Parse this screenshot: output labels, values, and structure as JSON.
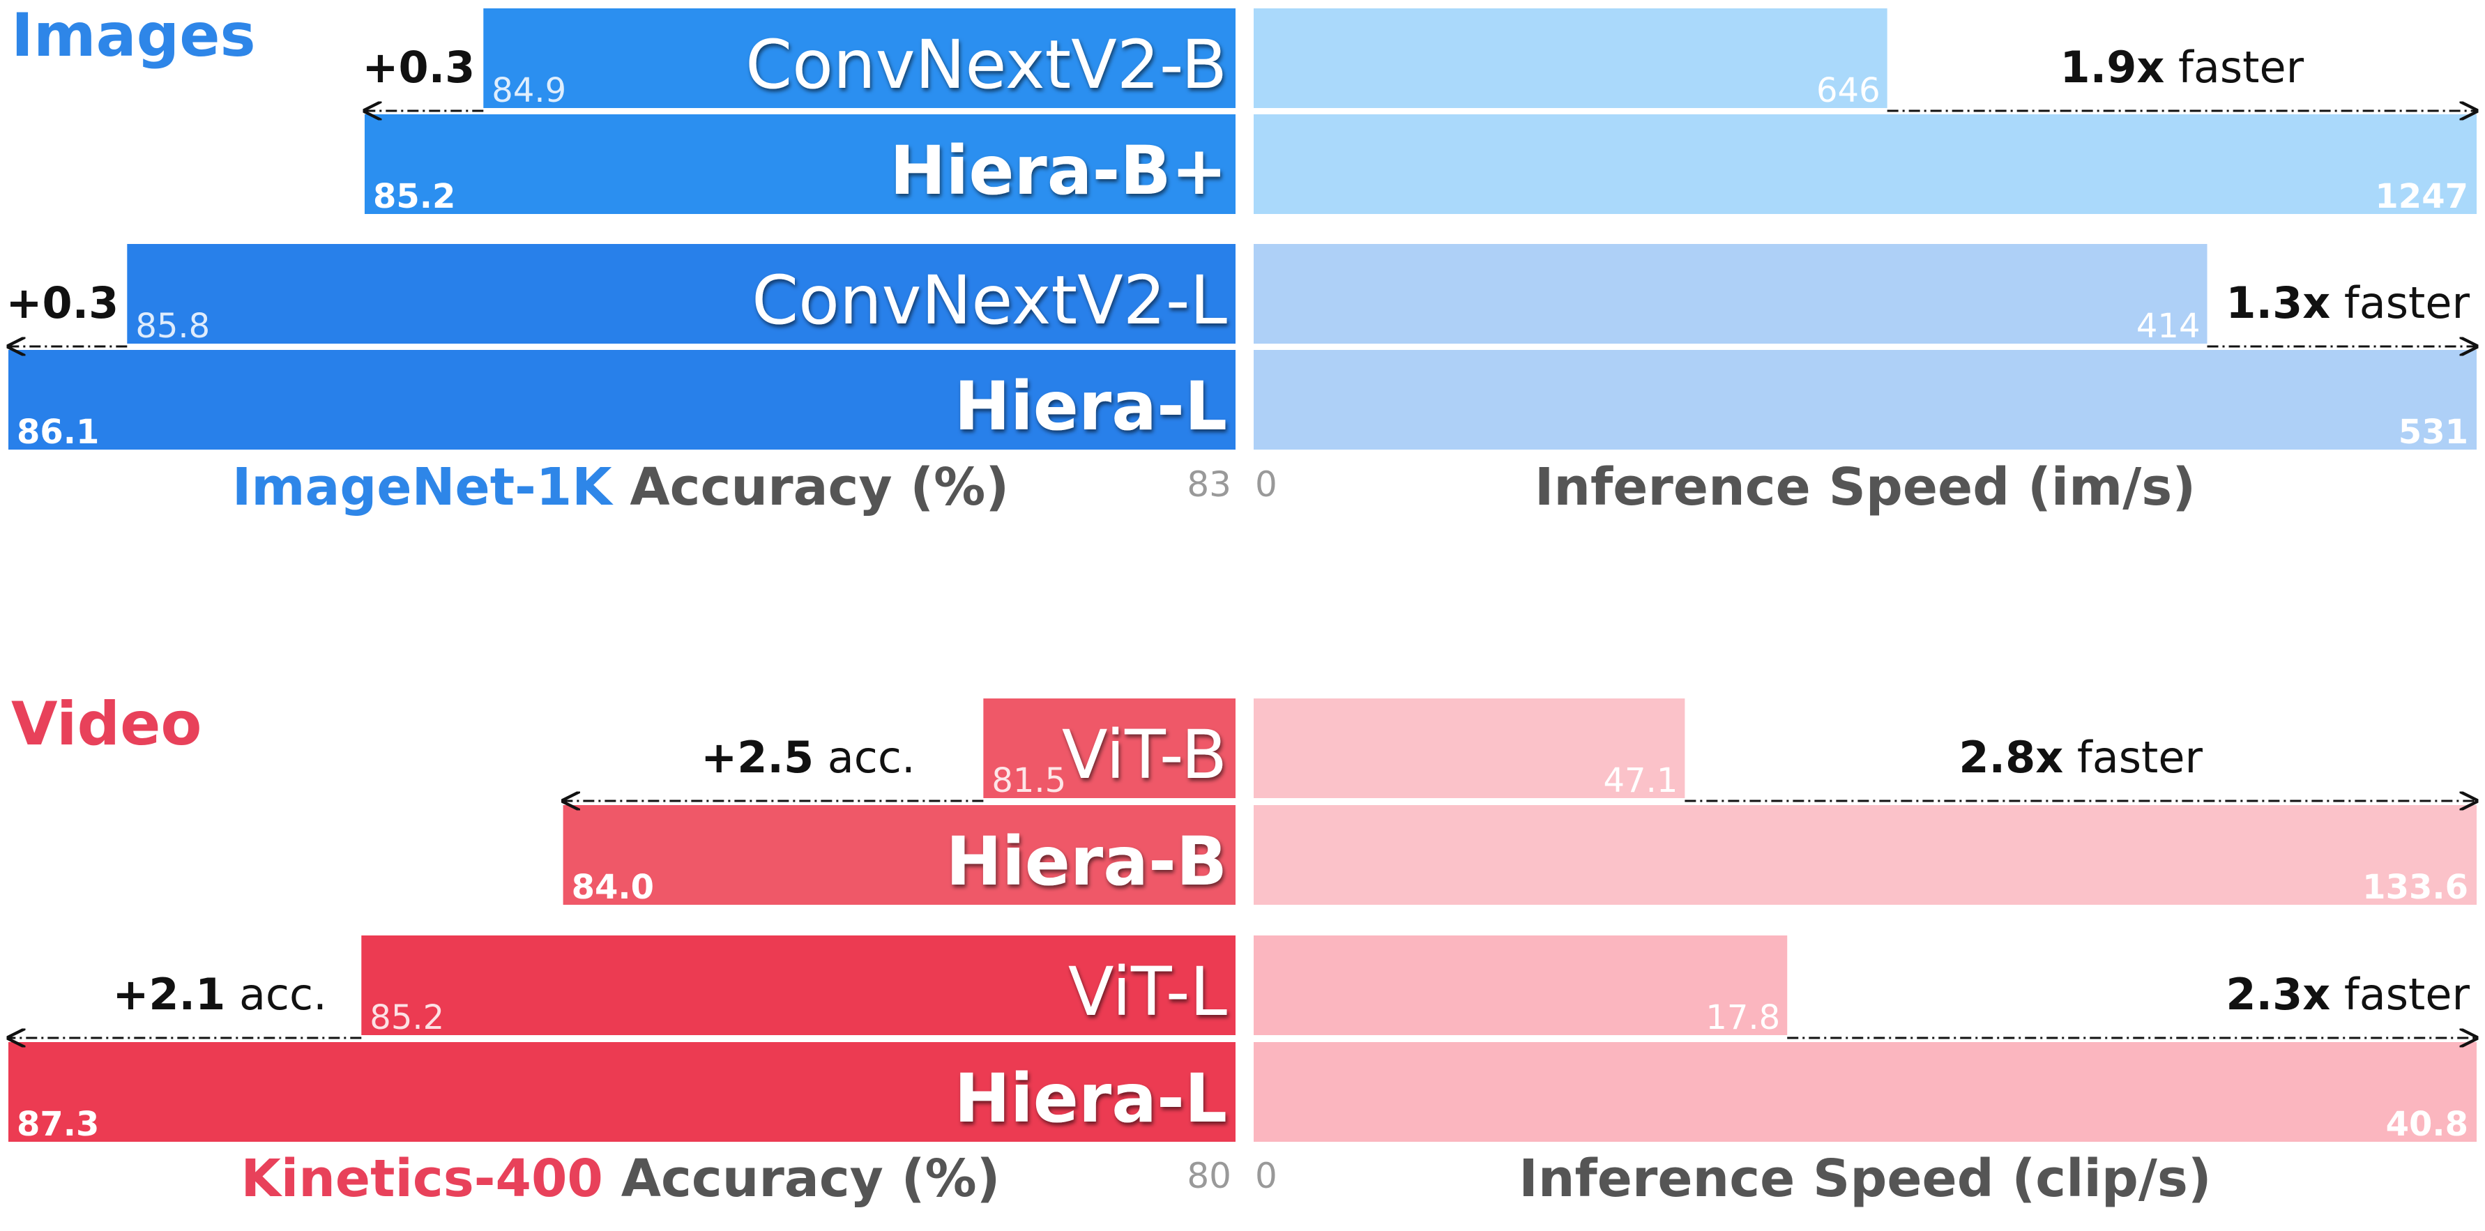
{
  "chart_data": [
    {
      "type": "bar",
      "section_title": "Images",
      "colors": {
        "section": "#2e86e8",
        "hiera_model_bar": "#2b8ff0",
        "baseline_model_bar": "#2b8ff0",
        "speed_bar": "#aad9fb",
        "hiera_large_bar": "#2880ea",
        "speed_large_bar": "#aed0f7"
      },
      "accuracy_axis": {
        "dataset_label": "ImageNet-1K",
        "label": "Accuracy (%)",
        "min_tick": "83",
        "xlim": [
          83,
          86.1
        ]
      },
      "speed_axis": {
        "label": "Inference Speed (im/s)",
        "min_tick": "0",
        "xlim": [
          0,
          1247
        ]
      },
      "groups": [
        {
          "baseline": {
            "name": "ConvNextV2-B",
            "accuracy": 84.9,
            "accuracy_label": "84.9",
            "speed": 646,
            "speed_label": "646"
          },
          "hiera": {
            "name": "Hiera-B+",
            "accuracy": 85.2,
            "accuracy_label": "85.2",
            "speed": 1247,
            "speed_label": "1247"
          },
          "accuracy_gain_label": "+0.3",
          "speedup_value": "1.9x",
          "speedup_text": "faster",
          "speed_scale_max": 1247
        },
        {
          "baseline": {
            "name": "ConvNextV2-L",
            "accuracy": 85.8,
            "accuracy_label": "85.8",
            "speed": 414,
            "speed_label": "414"
          },
          "hiera": {
            "name": "Hiera-L",
            "accuracy": 86.1,
            "accuracy_label": "86.1",
            "speed": 531,
            "speed_label": "531"
          },
          "accuracy_gain_label": "+0.3",
          "speedup_value": "1.3x",
          "speedup_text": "faster",
          "speed_scale_max": 531
        }
      ]
    },
    {
      "type": "bar",
      "section_title": "Video",
      "colors": {
        "section": "#e8415a",
        "hiera_model_bar": "#ef5868",
        "baseline_model_bar": "#ef5868",
        "speed_bar": "#fbc2c9",
        "hiera_large_bar": "#ec3b52",
        "speed_large_bar": "#fbb6bf"
      },
      "accuracy_axis": {
        "dataset_label": "Kinetics-400",
        "label": "Accuracy (%)",
        "min_tick": "80",
        "xlim": [
          80,
          87.3
        ]
      },
      "speed_axis": {
        "label": "Inference Speed (clip/s)",
        "min_tick": "0",
        "xlim": [
          0,
          133.6
        ]
      },
      "groups": [
        {
          "baseline": {
            "name": "ViT-B",
            "accuracy": 81.5,
            "accuracy_label": "81.5",
            "speed": 47.1,
            "speed_label": "47.1"
          },
          "hiera": {
            "name": "Hiera-B",
            "accuracy": 84.0,
            "accuracy_label": "84.0",
            "speed": 133.6,
            "speed_label": "133.6"
          },
          "accuracy_gain_label": "+2.5",
          "accuracy_gain_suffix": "acc.",
          "speedup_value": "2.8x",
          "speedup_text": "faster",
          "speed_scale_max": 133.6
        },
        {
          "baseline": {
            "name": "ViT-L",
            "accuracy": 85.2,
            "accuracy_label": "85.2",
            "speed": 17.8,
            "speed_label": "17.8"
          },
          "hiera": {
            "name": "Hiera-L",
            "accuracy": 87.3,
            "accuracy_label": "87.3",
            "speed": 40.8,
            "speed_label": "40.8"
          },
          "accuracy_gain_label": "+2.1",
          "accuracy_gain_suffix": "acc.",
          "speedup_value": "2.3x",
          "speedup_text": "faster",
          "speed_scale_max": 40.8
        }
      ]
    }
  ]
}
